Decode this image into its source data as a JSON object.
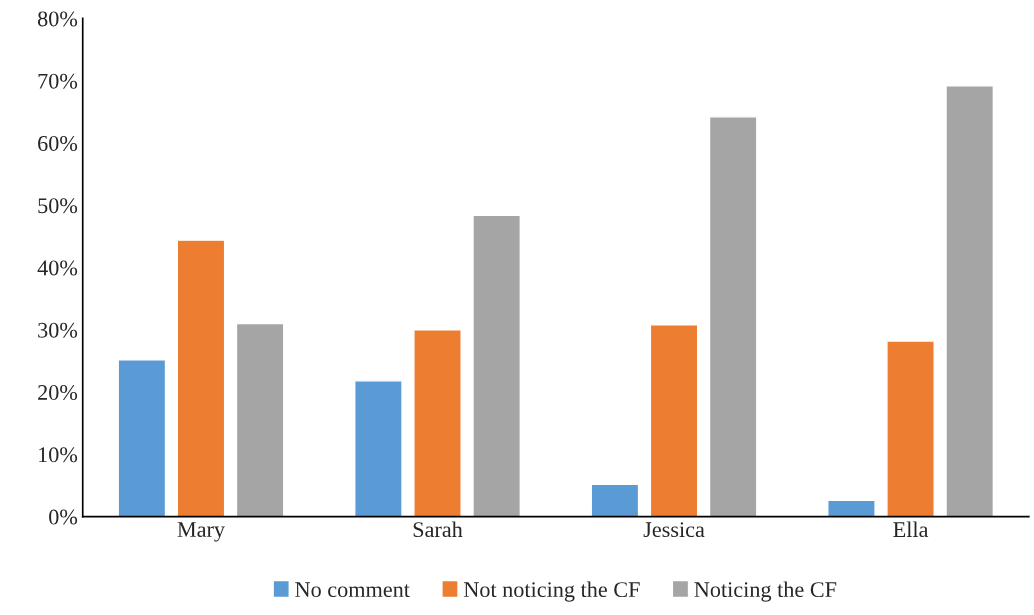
{
  "chart_data": {
    "type": "bar",
    "categories": [
      "Mary",
      "Sarah",
      "Jessica",
      "Ella"
    ],
    "series": [
      {
        "name": "No comment",
        "color": "#5b9bd5",
        "values": [
          25.2,
          21.8,
          5.2,
          2.6
        ]
      },
      {
        "name": "Not noticing the CF",
        "color": "#ed7d31",
        "values": [
          44.4,
          30.0,
          30.8,
          28.2
        ]
      },
      {
        "name": "Noticing the CF",
        "color": "#a5a5a5",
        "values": [
          31.0,
          48.4,
          64.2,
          69.2
        ]
      }
    ],
    "ylim": [
      0,
      80
    ],
    "yticks": [
      {
        "value": 0,
        "label": "0%"
      },
      {
        "value": 10,
        "label": "10%"
      },
      {
        "value": 20,
        "label": "20%"
      },
      {
        "value": 30,
        "label": "30%"
      },
      {
        "value": 40,
        "label": "40%"
      },
      {
        "value": 50,
        "label": "50%"
      },
      {
        "value": 60,
        "label": "60%"
      },
      {
        "value": 70,
        "label": "70%"
      },
      {
        "value": 80,
        "label": "80%"
      }
    ],
    "grid": false,
    "legend": "bottom"
  }
}
